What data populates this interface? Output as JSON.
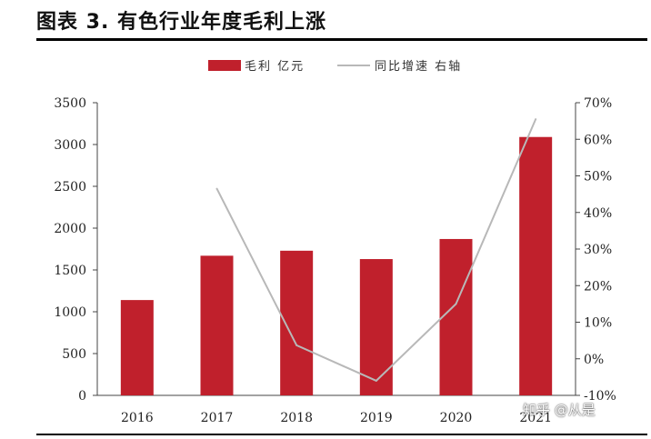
{
  "title": "图表 3.   有色行业年度毛利上涨",
  "watermark": "知乎 @从是",
  "chart_data": {
    "type": "bar",
    "categories": [
      "2016",
      "2017",
      "2018",
      "2019",
      "2020",
      "2021"
    ],
    "series": [
      {
        "name": "毛利 亿元",
        "type": "bar",
        "axis": "left",
        "color": "#c0202c",
        "values": [
          1140,
          1670,
          1730,
          1630,
          1870,
          3090
        ]
      },
      {
        "name": "同比增速 右轴",
        "type": "line",
        "axis": "right",
        "color": "#b8b8b8",
        "values": [
          null,
          46.5,
          3.7,
          -6.0,
          15.0,
          65.5
        ]
      }
    ],
    "y_left": {
      "min": 0,
      "max": 3500,
      "step": 500,
      "ticks": [
        "0",
        "500",
        "1000",
        "1500",
        "2000",
        "2500",
        "3000",
        "3500"
      ]
    },
    "y_right": {
      "min": -10,
      "max": 70,
      "step": 10,
      "ticks": [
        "-10%",
        "0%",
        "10%",
        "20%",
        "30%",
        "40%",
        "50%",
        "60%",
        "70%"
      ]
    },
    "legend_position": "top-center",
    "grid": false
  }
}
